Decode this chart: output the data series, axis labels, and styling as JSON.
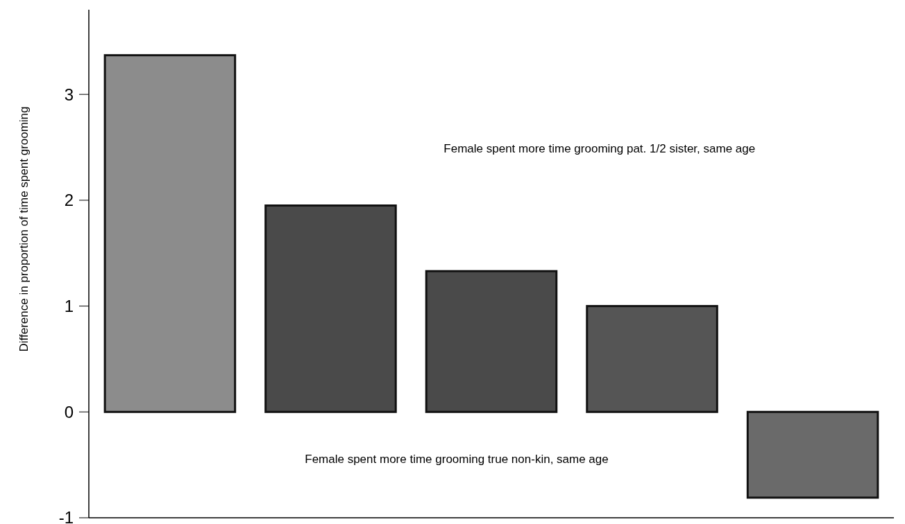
{
  "chart_data": {
    "type": "bar",
    "ylabel": "Difference in proportion of time spent grooming",
    "categories": [
      null,
      null,
      null,
      null,
      null
    ],
    "values": [
      3.37,
      1.95,
      1.33,
      1.0,
      -0.81
    ],
    "colors": [
      "#8c8c8c",
      "#4a4a4a",
      "#4a4a4a",
      "#555555",
      "#6a6a6a"
    ],
    "ylim": [
      -1,
      3.8
    ],
    "yticks": [
      -1,
      0,
      1,
      2,
      3
    ],
    "grid": false,
    "annotations": [
      "Female spent more time grooming pat. 1/2 sister, same age",
      "Female spent more time grooming true non-kin, same age"
    ]
  }
}
